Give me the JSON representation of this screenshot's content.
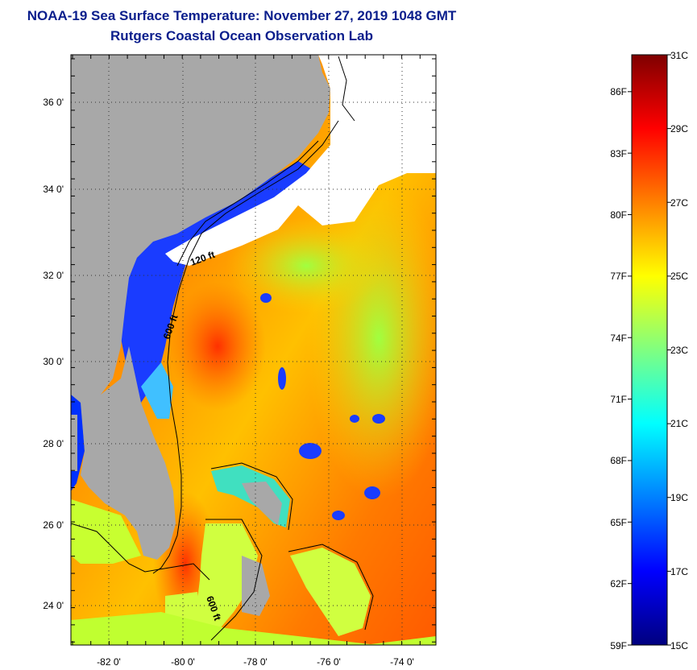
{
  "header": {
    "title": "NOAA-19 Sea Surface Temperature:  November 27, 2019 1048 GMT",
    "subtitle": "Rutgers Coastal Ocean Observation Lab"
  },
  "map": {
    "lon_labels": [
      "-82 0'",
      "-80 0'",
      "-78 0'",
      "-76 0'",
      "-74 0'"
    ],
    "lat_labels": [
      "36 0'",
      "34 0'",
      "32 0'",
      "30 0'",
      "28 0'",
      "26 0'",
      "24 0'"
    ],
    "contour_labels": [
      "120 ft",
      "600 ft",
      "600 ft"
    ]
  },
  "colorbar": {
    "celsius_labels": [
      "31C",
      "29C",
      "27C",
      "25C",
      "23C",
      "21C",
      "19C",
      "17C",
      "15C"
    ],
    "fahrenheit_labels": [
      "86F",
      "83F",
      "80F",
      "77F",
      "74F",
      "71F",
      "68F",
      "65F",
      "62F",
      "59F"
    ],
    "range_c": [
      15,
      31
    ],
    "colors": [
      "#00007f",
      "#0000ff",
      "#0080ff",
      "#00ffff",
      "#80ff80",
      "#ffff00",
      "#ff8000",
      "#ff0000",
      "#7f0000"
    ]
  },
  "colors": {
    "title": "#0a1e8c",
    "land": "#a8a8a8",
    "cloud": "#ffffff"
  }
}
